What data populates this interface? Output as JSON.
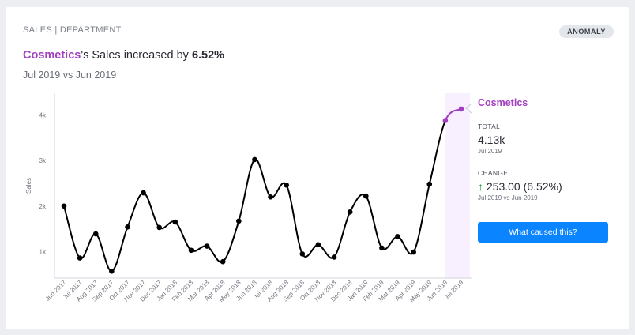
{
  "card": {
    "breadcrumb": "SALES | DEPARTMENT",
    "badge": "ANOMALY",
    "headline": {
      "entity": "Cosmetics",
      "middle": "'s Sales increased by ",
      "percent": "6.52%"
    },
    "period": "Jul 2019 vs Jun 2019"
  },
  "panel": {
    "entity": "Cosmetics",
    "total_label": "TOTAL",
    "total_value": "4.13k",
    "total_period": "Jul 2019",
    "change_label": "CHANGE",
    "change_arrow": "↑",
    "change_value": "253.00 (6.52%)",
    "change_period": "Jul 2019 vs Jun 2019",
    "cta": "What caused this?"
  },
  "colors": {
    "accent": "#a23ec0",
    "line": "#000000",
    "highlight_band": "#f8efff",
    "button": "#0a84ff",
    "up": "#1e9a3c"
  },
  "chart_data": {
    "type": "line",
    "ylabel": "Sales",
    "xlabel": "",
    "ylim": [
      0,
      4500
    ],
    "yticks": [
      1000,
      2000,
      3000,
      4000
    ],
    "ytick_labels": [
      "1k",
      "2k",
      "3k",
      "4k"
    ],
    "categories": [
      "Jun 2017",
      "Jul 2017",
      "Aug 2017",
      "Sep 2017",
      "Oct 2017",
      "Nov 2017",
      "Dec 2017",
      "Jan 2018",
      "Feb 2018",
      "Mar 2018",
      "Apr 2018",
      "May 2018",
      "Jun 2018",
      "Jul 2018",
      "Aug 2018",
      "Sep 2018",
      "Oct 2018",
      "Nov 2018",
      "Dec 2018",
      "Jan 2019",
      "Feb 2019",
      "Mar 2019",
      "Apr 2019",
      "May 2019",
      "Jun 2019",
      "Jul 2019"
    ],
    "series": [
      {
        "values": [
          2000,
          860,
          1390,
          570,
          1540,
          2290,
          1530,
          1650,
          1030,
          1120,
          780,
          1670,
          3020,
          2200,
          2460,
          950,
          1150,
          880,
          1870,
          2220,
          1080,
          1330,
          990,
          2480,
          3877,
          4130
        ]
      }
    ],
    "highlighted": [
      "Jun 2019",
      "Jul 2019"
    ],
    "grid": false
  }
}
